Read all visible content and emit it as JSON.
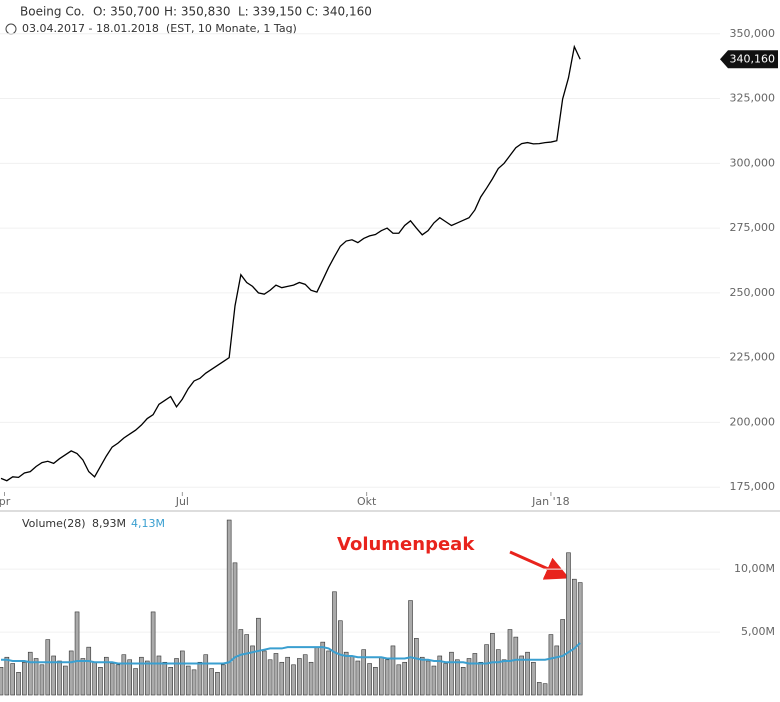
{
  "chart_data": [
    {
      "type": "line",
      "title": "Boeing Co.",
      "ohlc": [
        "O: 350,700",
        "H: 350,830",
        "L: 339,150",
        "C: 340,160"
      ],
      "date_range": "03.04.2017 - 18.01.2018",
      "period": "(EST, 10 Monate, 1 Tag)",
      "color": "#000000",
      "values": [
        178.4,
        177.5,
        179,
        178.8,
        180.5,
        181,
        183,
        184.5,
        185,
        184.2,
        186,
        187.5,
        189,
        188,
        185.5,
        181,
        179,
        183,
        187,
        190.5,
        192,
        194,
        195.5,
        197,
        199,
        201.5,
        203,
        207,
        208.5,
        210,
        206,
        209,
        213,
        216,
        217,
        219,
        220.5,
        222,
        223.5,
        225,
        245,
        257,
        254,
        252.5,
        250,
        249.5,
        251,
        253,
        252,
        252.5,
        253,
        254,
        253.3,
        251,
        250.3,
        255,
        259.8,
        264,
        268,
        270,
        270.5,
        269.4,
        271,
        272,
        272.5,
        274,
        275,
        273,
        273,
        276,
        277.8,
        275,
        272.4,
        274,
        277,
        279,
        277.5,
        276,
        277,
        278,
        279,
        282,
        287,
        290.4,
        294,
        298,
        300,
        303,
        306,
        307.6,
        308,
        307.5,
        307.6,
        308,
        308.2,
        308.7,
        324.8,
        333,
        345,
        340.16
      ],
      "price_tag": {
        "value": 340.16,
        "label": "340,160"
      },
      "xlim": [
        -0.17,
        122.9
      ],
      "xticks": [
        {
          "value": 0.6,
          "label": "pr"
        },
        {
          "value": 31,
          "label": "Jul"
        },
        {
          "value": 62.5,
          "label": "Okt"
        },
        {
          "value": 94,
          "label": "Jan '18"
        }
      ],
      "ylim": [
        166.2,
        361.1
      ],
      "yticks": [
        {
          "value": 175,
          "label": "175,000"
        },
        {
          "value": 200,
          "label": "200,000"
        },
        {
          "value": 225,
          "label": "225,000"
        },
        {
          "value": 250,
          "label": "250,000"
        },
        {
          "value": 275,
          "label": "275,000"
        },
        {
          "value": 300,
          "label": "300,000"
        },
        {
          "value": 325,
          "label": "325,000"
        },
        {
          "value": 350,
          "label": "350,000"
        }
      ]
    },
    {
      "type": "bar",
      "title": "Volume(28)",
      "annotation": "Volumenpeak",
      "series": [
        {
          "name": "8,93M",
          "color": "#aaaaaa",
          "values": [
            2.2,
            3.0,
            2.5,
            1.8,
            2.6,
            3.4,
            2.9,
            2.4,
            4.4,
            3.1,
            2.7,
            2.3,
            3.5,
            6.6,
            2.9,
            3.8,
            2.6,
            2.2,
            3.0,
            2.5,
            2.4,
            3.2,
            2.8,
            2.1,
            3.0,
            2.7,
            6.6,
            3.1,
            2.6,
            2.2,
            2.9,
            3.5,
            2.3,
            2.0,
            2.6,
            3.2,
            2.1,
            1.8,
            2.4,
            13.9,
            10.5,
            5.2,
            4.8,
            3.9,
            6.1,
            3.5,
            2.8,
            3.3,
            2.6,
            3.0,
            2.4,
            2.9,
            3.2,
            2.6,
            3.8,
            4.2,
            3.5,
            8.2,
            5.9,
            3.4,
            3.1,
            2.7,
            3.6,
            2.5,
            2.2,
            3.0,
            2.8,
            3.9,
            2.4,
            2.6,
            7.5,
            4.5,
            3.0,
            2.7,
            2.3,
            3.1,
            2.5,
            3.4,
            2.8,
            2.2,
            2.9,
            3.3,
            2.6,
            4.0,
            4.9,
            3.6,
            2.8,
            5.2,
            4.6,
            3.1,
            3.4,
            2.6,
            1.0,
            0.9,
            4.8,
            3.9,
            6.0,
            11.3,
            9.2,
            8.93
          ]
        },
        {
          "name": "4,13M",
          "color": "#3a9fd0",
          "values": [
            2.8,
            2.8,
            2.7,
            2.7,
            2.7,
            2.6,
            2.6,
            2.6,
            2.6,
            2.6,
            2.6,
            2.6,
            2.6,
            2.7,
            2.7,
            2.7,
            2.6,
            2.6,
            2.6,
            2.6,
            2.5,
            2.5,
            2.5,
            2.5,
            2.5,
            2.5,
            2.5,
            2.5,
            2.5,
            2.5,
            2.5,
            2.5,
            2.5,
            2.5,
            2.5,
            2.5,
            2.5,
            2.5,
            2.5,
            2.6,
            3.0,
            3.2,
            3.3,
            3.4,
            3.5,
            3.6,
            3.7,
            3.7,
            3.7,
            3.8,
            3.8,
            3.8,
            3.8,
            3.8,
            3.8,
            3.8,
            3.7,
            3.4,
            3.2,
            3.1,
            3.1,
            3.0,
            3.0,
            3.0,
            3.0,
            3.0,
            2.9,
            2.9,
            2.9,
            2.9,
            3.0,
            2.9,
            2.8,
            2.8,
            2.7,
            2.7,
            2.6,
            2.6,
            2.6,
            2.6,
            2.5,
            2.5,
            2.5,
            2.5,
            2.6,
            2.6,
            2.7,
            2.7,
            2.8,
            2.8,
            2.8,
            2.8,
            2.8,
            2.8,
            2.9,
            3.0,
            3.1,
            3.4,
            3.7,
            4.13
          ]
        }
      ],
      "xlim": [
        -0.17,
        122.9
      ],
      "ylim": [
        0,
        14.3
      ],
      "yticks": [
        {
          "value": 5,
          "label": "5,00M"
        },
        {
          "value": 10,
          "label": "10,00M"
        }
      ]
    }
  ]
}
